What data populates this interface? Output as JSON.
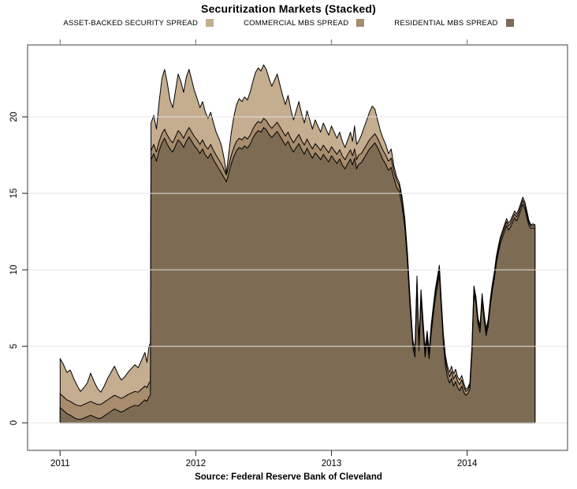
{
  "page": {
    "background": "#ffffff"
  },
  "header": {
    "title": "Securitization Markets (Stacked)"
  },
  "footer": {
    "source": "Source: Federal Reserve Bank of Cleveland"
  },
  "chart_data": {
    "type": "area",
    "stacked": true,
    "title": "Securitization Markets (Stacked)",
    "x_axis": {
      "ticks": [
        2011,
        2012,
        2013,
        2014
      ],
      "range": [
        2010.76,
        2014.74
      ]
    },
    "y_axis": {
      "ticks": [
        0,
        5,
        10,
        15,
        20
      ],
      "range": [
        -1.8,
        24.7
      ]
    },
    "grid": {
      "horizontal": true,
      "vertical": false,
      "color": "#e3e3e3"
    },
    "frame_color": "#878787",
    "tick_color": "#404040",
    "outline_color": "#000000",
    "legend_position": "top",
    "series": [
      {
        "key": "abs",
        "label": "ASSET-BACKED SECURITY SPREAD",
        "color": "#c5ad90",
        "column": 3
      },
      {
        "key": "cmbs",
        "label": "COMMERCIAL MBS SPREAD",
        "color": "#a78c6d",
        "column": 2
      },
      {
        "key": "rmbs",
        "label": "RESIDENTIAL MBS SPREAD",
        "color": "#7d6b53",
        "column": 1
      }
    ],
    "points_columns": [
      "time",
      "residential_mbs_stack_top",
      "commercial_mbs_stack_top",
      "total_stack_top_asset_backed"
    ],
    "points": [
      [
        2011.0,
        1.0,
        1.9,
        4.2
      ],
      [
        2011.025,
        0.8,
        1.7,
        3.8
      ],
      [
        2011.05,
        0.6,
        1.5,
        3.3
      ],
      [
        2011.075,
        0.5,
        1.4,
        3.45
      ],
      [
        2011.1,
        0.35,
        1.25,
        2.9
      ],
      [
        2011.125,
        0.25,
        1.15,
        2.45
      ],
      [
        2011.15,
        0.22,
        1.1,
        2.05
      ],
      [
        2011.175,
        0.3,
        1.2,
        2.3
      ],
      [
        2011.2,
        0.4,
        1.3,
        2.6
      ],
      [
        2011.225,
        0.5,
        1.4,
        3.25
      ],
      [
        2011.25,
        0.4,
        1.3,
        2.7
      ],
      [
        2011.275,
        0.3,
        1.2,
        2.25
      ],
      [
        2011.3,
        0.3,
        1.2,
        2.0
      ],
      [
        2011.325,
        0.45,
        1.35,
        2.4
      ],
      [
        2011.35,
        0.6,
        1.5,
        2.9
      ],
      [
        2011.375,
        0.75,
        1.65,
        3.3
      ],
      [
        2011.4,
        0.9,
        1.8,
        3.7
      ],
      [
        2011.425,
        0.8,
        1.7,
        3.2
      ],
      [
        2011.45,
        0.7,
        1.6,
        2.8
      ],
      [
        2011.475,
        0.8,
        1.7,
        3.0
      ],
      [
        2011.5,
        0.95,
        1.85,
        3.3
      ],
      [
        2011.525,
        1.05,
        1.95,
        3.55
      ],
      [
        2011.55,
        1.15,
        2.05,
        3.8
      ],
      [
        2011.575,
        1.1,
        2.0,
        3.6
      ],
      [
        2011.6,
        1.3,
        2.2,
        4.1
      ],
      [
        2011.625,
        1.5,
        2.4,
        4.6
      ],
      [
        2011.64,
        1.4,
        2.3,
        3.95
      ],
      [
        2011.655,
        1.7,
        2.6,
        5.0
      ],
      [
        2011.665,
        1.8,
        2.7,
        5.2
      ],
      [
        2011.67,
        17.2,
        17.8,
        19.6
      ],
      [
        2011.69,
        17.6,
        18.2,
        20.1
      ],
      [
        2011.71,
        17.1,
        17.7,
        19.2
      ],
      [
        2011.73,
        17.8,
        18.4,
        21.0
      ],
      [
        2011.75,
        18.3,
        18.9,
        22.5
      ],
      [
        2011.77,
        18.6,
        19.2,
        23.1
      ],
      [
        2011.79,
        18.2,
        18.8,
        22.2
      ],
      [
        2011.81,
        17.9,
        18.5,
        21.1
      ],
      [
        2011.83,
        17.7,
        18.3,
        20.6
      ],
      [
        2011.85,
        18.1,
        18.7,
        21.7
      ],
      [
        2011.87,
        18.5,
        19.1,
        22.8
      ],
      [
        2011.89,
        18.3,
        18.9,
        22.3
      ],
      [
        2011.91,
        18.0,
        18.6,
        21.6
      ],
      [
        2011.93,
        18.4,
        19.0,
        22.6
      ],
      [
        2011.95,
        18.7,
        19.3,
        23.1
      ],
      [
        2011.97,
        18.4,
        19.0,
        22.4
      ],
      [
        2011.99,
        18.1,
        18.7,
        21.7
      ],
      [
        2012.01,
        17.9,
        18.5,
        21.2
      ],
      [
        2012.03,
        17.6,
        18.2,
        20.6
      ],
      [
        2012.05,
        17.9,
        18.5,
        21.0
      ],
      [
        2012.07,
        17.5,
        18.1,
        20.3
      ],
      [
        2012.09,
        17.3,
        17.9,
        19.9
      ],
      [
        2012.11,
        17.6,
        18.2,
        20.3
      ],
      [
        2012.13,
        17.2,
        17.8,
        19.6
      ],
      [
        2012.15,
        16.9,
        17.5,
        19.0
      ],
      [
        2012.17,
        16.6,
        17.2,
        18.6
      ],
      [
        2012.19,
        16.3,
        16.9,
        18.1
      ],
      [
        2012.21,
        16.0,
        16.5,
        17.2
      ],
      [
        2012.225,
        15.75,
        16.2,
        16.3
      ],
      [
        2012.24,
        16.2,
        16.7,
        17.4
      ],
      [
        2012.26,
        16.9,
        17.45,
        18.9
      ],
      [
        2012.28,
        17.4,
        18.0,
        20.0
      ],
      [
        2012.3,
        17.8,
        18.4,
        20.8
      ],
      [
        2012.32,
        18.0,
        18.6,
        21.2
      ],
      [
        2012.34,
        17.9,
        18.5,
        21.0
      ],
      [
        2012.36,
        18.1,
        18.7,
        21.3
      ],
      [
        2012.38,
        17.95,
        18.55,
        21.1
      ],
      [
        2012.4,
        18.2,
        18.8,
        21.6
      ],
      [
        2012.42,
        18.6,
        19.2,
        22.3
      ],
      [
        2012.44,
        18.9,
        19.5,
        22.9
      ],
      [
        2012.46,
        19.1,
        19.7,
        23.2
      ],
      [
        2012.48,
        19.0,
        19.6,
        23.0
      ],
      [
        2012.5,
        19.3,
        19.9,
        23.4
      ],
      [
        2012.52,
        19.15,
        19.75,
        23.1
      ],
      [
        2012.54,
        18.85,
        19.45,
        22.5
      ],
      [
        2012.56,
        18.65,
        19.25,
        22.0
      ],
      [
        2012.58,
        18.85,
        19.45,
        22.4
      ],
      [
        2012.6,
        19.05,
        19.65,
        22.8
      ],
      [
        2012.62,
        18.75,
        19.35,
        22.1
      ],
      [
        2012.64,
        18.45,
        19.05,
        21.4
      ],
      [
        2012.66,
        18.15,
        18.75,
        20.8
      ],
      [
        2012.68,
        18.4,
        19.0,
        21.4
      ],
      [
        2012.7,
        18.0,
        18.6,
        20.5
      ],
      [
        2012.72,
        17.7,
        18.3,
        19.8
      ],
      [
        2012.74,
        18.0,
        18.6,
        20.4
      ],
      [
        2012.76,
        18.25,
        18.85,
        21.0
      ],
      [
        2012.78,
        17.85,
        18.45,
        20.2
      ],
      [
        2012.8,
        17.55,
        18.15,
        19.6
      ],
      [
        2012.82,
        17.95,
        18.55,
        20.4
      ],
      [
        2012.84,
        17.6,
        18.2,
        19.8
      ],
      [
        2012.86,
        17.3,
        17.9,
        19.2
      ],
      [
        2012.88,
        17.65,
        18.25,
        19.8
      ],
      [
        2012.9,
        17.45,
        18.05,
        19.4
      ],
      [
        2012.92,
        17.2,
        17.8,
        19.0
      ],
      [
        2012.94,
        17.55,
        18.15,
        19.6
      ],
      [
        2012.96,
        17.3,
        17.9,
        19.2
      ],
      [
        2012.98,
        17.05,
        17.65,
        18.8
      ],
      [
        2013.0,
        17.45,
        18.05,
        19.4
      ],
      [
        2013.02,
        17.2,
        17.8,
        19.0
      ],
      [
        2013.04,
        16.95,
        17.55,
        18.6
      ],
      [
        2013.06,
        17.25,
        17.85,
        19.0
      ],
      [
        2013.08,
        16.85,
        17.45,
        18.4
      ],
      [
        2013.1,
        16.6,
        17.2,
        18.0
      ],
      [
        2013.12,
        16.95,
        17.55,
        18.5
      ],
      [
        2013.14,
        17.25,
        17.85,
        19.0
      ],
      [
        2013.155,
        16.85,
        17.45,
        18.4
      ],
      [
        2013.17,
        17.3,
        17.9,
        19.4
      ],
      [
        2013.185,
        16.6,
        17.2,
        18.2
      ],
      [
        2013.2,
        16.9,
        17.5,
        18.4
      ],
      [
        2013.22,
        17.0,
        17.6,
        18.8
      ],
      [
        2013.24,
        17.3,
        17.9,
        19.3
      ],
      [
        2013.26,
        17.6,
        18.2,
        19.8
      ],
      [
        2013.28,
        17.9,
        18.5,
        20.3
      ],
      [
        2013.3,
        18.1,
        18.7,
        20.7
      ],
      [
        2013.32,
        18.3,
        18.9,
        20.5
      ],
      [
        2013.34,
        18.0,
        18.6,
        19.8
      ],
      [
        2013.36,
        17.6,
        18.2,
        19.1
      ],
      [
        2013.38,
        17.2,
        17.8,
        18.6
      ],
      [
        2013.4,
        16.9,
        17.5,
        18.2
      ],
      [
        2013.42,
        16.5,
        17.1,
        17.6
      ],
      [
        2013.44,
        16.7,
        17.3,
        17.9
      ],
      [
        2013.46,
        16.0,
        16.45,
        16.8
      ],
      [
        2013.48,
        15.4,
        15.85,
        16.1
      ],
      [
        2013.5,
        15.1,
        15.5,
        15.7
      ],
      [
        2013.52,
        14.2,
        14.6,
        14.8
      ],
      [
        2013.54,
        12.8,
        13.2,
        13.4
      ],
      [
        2013.56,
        10.5,
        10.9,
        11.1
      ],
      [
        2013.58,
        7.4,
        7.8,
        8.0
      ],
      [
        2013.6,
        4.9,
        5.2,
        5.4
      ],
      [
        2013.615,
        4.3,
        4.6,
        4.8
      ],
      [
        2013.63,
        8.9,
        9.3,
        9.6
      ],
      [
        2013.645,
        4.7,
        5.0,
        5.2
      ],
      [
        2013.66,
        8.1,
        8.45,
        8.7
      ],
      [
        2013.675,
        6.1,
        6.45,
        6.7
      ],
      [
        2013.69,
        4.3,
        4.6,
        4.8
      ],
      [
        2013.705,
        5.4,
        5.75,
        6.0
      ],
      [
        2013.72,
        4.2,
        4.5,
        4.7
      ],
      [
        2013.735,
        5.8,
        6.15,
        6.4
      ],
      [
        2013.75,
        7.0,
        7.35,
        7.6
      ],
      [
        2013.765,
        8.1,
        8.45,
        8.7
      ],
      [
        2013.78,
        8.9,
        9.25,
        9.5
      ],
      [
        2013.795,
        9.7,
        10.05,
        10.3
      ],
      [
        2013.81,
        7.4,
        7.75,
        8.0
      ],
      [
        2013.825,
        5.2,
        5.55,
        5.8
      ],
      [
        2013.84,
        3.7,
        4.1,
        4.4
      ],
      [
        2013.855,
        3.0,
        3.4,
        3.7
      ],
      [
        2013.87,
        2.6,
        3.0,
        3.3
      ],
      [
        2013.885,
        2.9,
        3.35,
        3.7
      ],
      [
        2013.9,
        2.4,
        2.85,
        3.2
      ],
      [
        2013.915,
        2.7,
        3.15,
        3.5
      ],
      [
        2013.93,
        2.3,
        2.7,
        3.0
      ],
      [
        2013.945,
        2.1,
        2.5,
        2.8
      ],
      [
        2013.96,
        2.4,
        2.8,
        3.1
      ],
      [
        2013.975,
        2.0,
        2.35,
        2.6
      ],
      [
        2013.99,
        1.8,
        2.05,
        2.2
      ],
      [
        2014.005,
        1.9,
        2.15,
        2.3
      ],
      [
        2014.02,
        2.2,
        2.45,
        2.6
      ],
      [
        2014.035,
        4.5,
        4.8,
        5.0
      ],
      [
        2014.05,
        8.4,
        8.7,
        8.95
      ],
      [
        2014.065,
        7.8,
        8.05,
        8.25
      ],
      [
        2014.08,
        6.4,
        6.65,
        6.85
      ],
      [
        2014.095,
        5.9,
        6.15,
        6.35
      ],
      [
        2014.11,
        8.0,
        8.25,
        8.45
      ],
      [
        2014.125,
        6.7,
        6.95,
        7.15
      ],
      [
        2014.14,
        5.7,
        5.95,
        6.15
      ],
      [
        2014.155,
        6.3,
        6.55,
        6.75
      ],
      [
        2014.17,
        7.6,
        7.85,
        8.05
      ],
      [
        2014.185,
        8.6,
        8.85,
        9.05
      ],
      [
        2014.2,
        9.4,
        9.65,
        9.85
      ],
      [
        2014.215,
        10.4,
        10.65,
        10.85
      ],
      [
        2014.23,
        11.1,
        11.35,
        11.55
      ],
      [
        2014.245,
        11.7,
        11.95,
        12.15
      ],
      [
        2014.26,
        12.1,
        12.35,
        12.55
      ],
      [
        2014.275,
        12.5,
        12.75,
        12.95
      ],
      [
        2014.29,
        12.9,
        13.15,
        13.35
      ],
      [
        2014.305,
        12.6,
        12.85,
        13.05
      ],
      [
        2014.32,
        12.8,
        13.05,
        13.25
      ],
      [
        2014.335,
        13.1,
        13.35,
        13.55
      ],
      [
        2014.35,
        13.4,
        13.65,
        13.85
      ],
      [
        2014.365,
        13.2,
        13.45,
        13.65
      ],
      [
        2014.38,
        13.5,
        13.75,
        13.95
      ],
      [
        2014.395,
        13.9,
        14.15,
        14.35
      ],
      [
        2014.41,
        14.3,
        14.55,
        14.75
      ],
      [
        2014.425,
        14.0,
        14.25,
        14.45
      ],
      [
        2014.44,
        13.4,
        13.65,
        13.85
      ],
      [
        2014.455,
        12.9,
        13.1,
        13.25
      ],
      [
        2014.47,
        12.7,
        12.85,
        12.95
      ],
      [
        2014.485,
        12.75,
        12.9,
        13.0
      ],
      [
        2014.5,
        12.7,
        12.85,
        12.95
      ]
    ]
  }
}
